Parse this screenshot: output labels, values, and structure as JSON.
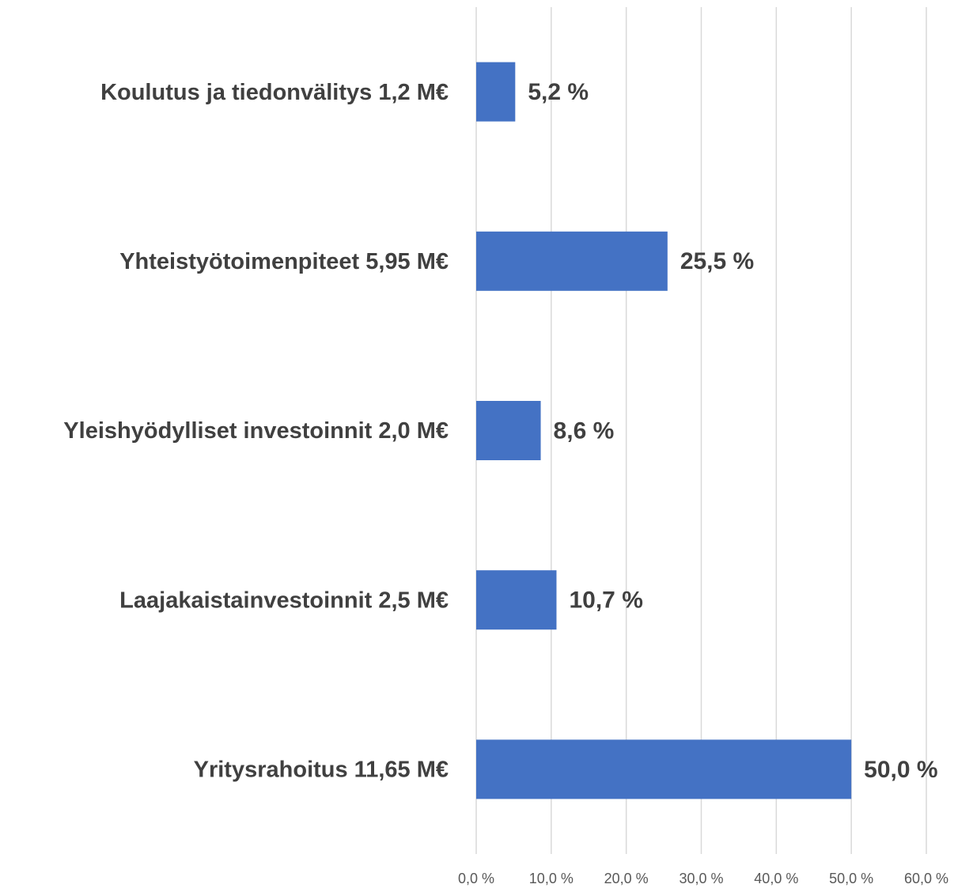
{
  "chart_data": {
    "type": "bar",
    "orientation": "horizontal",
    "categories": [
      "Koulutus ja tiedonvälitys 1,2 M€",
      "Yhteistyötoimenpiteet 5,95 M€",
      "Yleishyödylliset investoinnit 2,0 M€",
      "Laajakaistainvestoinnit 2,5 M€",
      "Yritysrahoitus 11,65 M€"
    ],
    "values": [
      5.2,
      25.5,
      8.6,
      10.7,
      50.0
    ],
    "value_labels": [
      "5,2 %",
      "25,5 %",
      "8,6 %",
      "10,7 %",
      "50,0 %"
    ],
    "color": "#4472c4",
    "xlim": [
      0,
      60
    ],
    "xticks": [
      {
        "value": 0,
        "label": "0,0 %"
      },
      {
        "value": 10,
        "label": "10,0 %"
      },
      {
        "value": 20,
        "label": "20,0 %"
      },
      {
        "value": 30,
        "label": "30,0 %"
      },
      {
        "value": 40,
        "label": "40,0 %"
      },
      {
        "value": 50,
        "label": "50,0 %"
      },
      {
        "value": 60,
        "label": "60,0 %"
      }
    ],
    "grid": true
  }
}
